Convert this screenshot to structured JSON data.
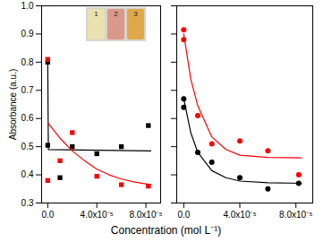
{
  "chart_data": [
    {
      "type": "scatter",
      "x_label": "Concentration (mol L⁻¹)",
      "y_label": "Absorbance (a.u.)",
      "inset_labels": [
        "1",
        "2",
        "3"
      ],
      "xlim": [
        -5e-06,
        9.2e-05
      ],
      "ylim": [
        0.3,
        1.0
      ],
      "xticks": [
        {
          "value": 0,
          "label": "0.0"
        },
        {
          "value": 4e-05,
          "label": "4.0x10⁻⁵"
        },
        {
          "value": 8e-05,
          "label": "8.0x10⁻⁵"
        }
      ],
      "yticks": [
        0.3,
        0.4,
        0.5,
        0.6,
        0.7,
        0.8,
        0.9,
        {
          "value": 1.0,
          "label": "1.0"
        }
      ],
      "series": [
        {
          "type": "scatter",
          "color": "#000000",
          "marker": "square",
          "x": [
            0,
            0,
            1e-05,
            2e-05,
            4e-05,
            6e-05,
            8.2e-05
          ],
          "values": [
            0.8,
            0.505,
            0.39,
            0.5,
            0.475,
            0.5,
            0.575
          ]
        },
        {
          "type": "scatter",
          "color": "#ff0000",
          "marker": "square",
          "x": [
            0,
            0,
            1e-05,
            2e-05,
            4e-05,
            6e-05,
            8.2e-05
          ],
          "values": [
            0.81,
            0.38,
            0.45,
            0.55,
            0.395,
            0.365,
            0.36
          ]
        },
        {
          "type": "line",
          "color": "#000000",
          "x": [
            0,
            5e-07,
            8.4e-05
          ],
          "values": [
            0.8,
            0.49,
            0.485
          ]
        },
        {
          "type": "line",
          "color": "#ff0000",
          "x": [
            0,
            1e-05,
            2e-05,
            3e-05,
            4e-05,
            5e-05,
            6e-05,
            7e-05,
            8.4e-05
          ],
          "values": [
            0.585,
            0.53,
            0.485,
            0.45,
            0.42,
            0.4,
            0.385,
            0.375,
            0.365
          ]
        }
      ]
    },
    {
      "type": "scatter",
      "tick_labels": "x",
      "xlim": [
        -5e-06,
        9.2e-05
      ],
      "ylim": [
        0.3,
        1.0
      ],
      "xticks": [
        {
          "value": 0,
          "label": "0.0"
        },
        {
          "value": 4e-05,
          "label": "4.0x10⁻⁵"
        },
        {
          "value": 8e-05,
          "label": "8.0x10⁻⁵"
        }
      ],
      "yticks": [
        0.3,
        0.4,
        0.5,
        0.6,
        0.7,
        0.8,
        0.9,
        {
          "value": 1.0,
          "label": "1.0"
        }
      ],
      "series": [
        {
          "type": "scatter",
          "color": "#ff0000",
          "marker": "circle",
          "x": [
            0,
            0,
            1e-05,
            2e-05,
            4e-05,
            6e-05,
            8.2e-05
          ],
          "values": [
            0.88,
            0.915,
            0.61,
            0.51,
            0.52,
            0.485,
            0.4
          ]
        },
        {
          "type": "scatter",
          "color": "#000000",
          "marker": "circle",
          "x": [
            0,
            0,
            1e-05,
            2e-05,
            4e-05,
            6e-05,
            8.2e-05
          ],
          "values": [
            0.67,
            0.64,
            0.48,
            0.445,
            0.39,
            0.35,
            0.37
          ]
        },
        {
          "type": "line",
          "color": "#ff0000",
          "x": [
            0,
            5e-06,
            1e-05,
            2e-05,
            3e-05,
            4e-05,
            6e-05,
            8.4e-05
          ],
          "values": [
            0.9,
            0.74,
            0.645,
            0.535,
            0.49,
            0.47,
            0.462,
            0.46
          ]
        },
        {
          "type": "line",
          "color": "#000000",
          "x": [
            0,
            5e-06,
            1e-05,
            2e-05,
            3e-05,
            4e-05,
            6e-05,
            8.4e-05
          ],
          "values": [
            0.67,
            0.55,
            0.48,
            0.415,
            0.39,
            0.378,
            0.372,
            0.37
          ]
        }
      ]
    }
  ]
}
